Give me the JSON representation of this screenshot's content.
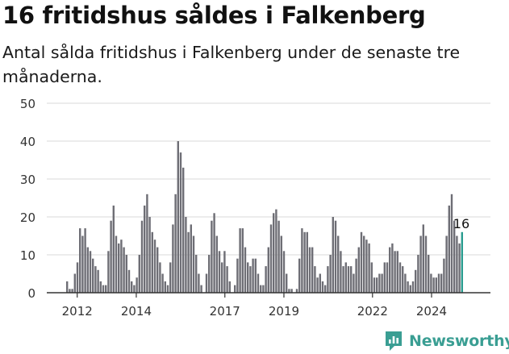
{
  "header": {
    "title": "16 fritidshus såldes i Falkenberg",
    "subtitle": "Antal sålda fritidshus i Falkenberg under de senaste tre månaderna."
  },
  "brand": {
    "name": "Newsworthy",
    "color": "#3a9e93",
    "icon": "newsworthy-logo-icon"
  },
  "colors": {
    "bar": "#6e6e75",
    "highlight": "#2a9c8f",
    "grid": "#d9d9d9",
    "axis": "#333333"
  },
  "chart_data": {
    "type": "bar",
    "title": "16 fritidshus såldes i Falkenberg",
    "subtitle": "Antal sålda fritidshus i Falkenberg under de senaste tre månaderna.",
    "xlabel": "",
    "ylabel": "",
    "ylim": [
      0,
      50
    ],
    "yticks": [
      0,
      10,
      20,
      30,
      40,
      50
    ],
    "xticks": [
      "2012",
      "2014",
      "2017",
      "2019",
      "2022",
      "2024"
    ],
    "grid": true,
    "legend": "none",
    "annotation": {
      "label": "16",
      "value": 16
    },
    "values": [
      3,
      1,
      1,
      5,
      8,
      17,
      15,
      17,
      12,
      11,
      9,
      7,
      6,
      3,
      2,
      2,
      11,
      19,
      23,
      15,
      13,
      14,
      12,
      10,
      6,
      3,
      2,
      4,
      10,
      19,
      23,
      26,
      20,
      16,
      14,
      12,
      8,
      5,
      3,
      2,
      8,
      18,
      26,
      40,
      37,
      33,
      20,
      16,
      18,
      15,
      10,
      5,
      2,
      0,
      5,
      10,
      19,
      21,
      15,
      11,
      8,
      11,
      7,
      3,
      0,
      2,
      9,
      17,
      17,
      12,
      8,
      7,
      9,
      9,
      5,
      2,
      2,
      7,
      12,
      18,
      21,
      22,
      19,
      15,
      11,
      5,
      1,
      1,
      0,
      1,
      9,
      17,
      16,
      16,
      12,
      12,
      7,
      4,
      5,
      3,
      2,
      7,
      10,
      20,
      19,
      15,
      11,
      7,
      8,
      7,
      7,
      5,
      9,
      12,
      16,
      15,
      14,
      13,
      8,
      4,
      4,
      5,
      5,
      8,
      8,
      12,
      13,
      11,
      11,
      8,
      7,
      5,
      3,
      2,
      3,
      6,
      10,
      15,
      18,
      15,
      10,
      5,
      4,
      4,
      5,
      5,
      9,
      15,
      23,
      26,
      19,
      15,
      13,
      16
    ],
    "series": [
      {
        "name": "",
        "values": [
          3,
          1,
          1,
          5,
          8,
          17,
          15,
          17,
          12,
          11,
          9,
          7,
          6,
          3,
          2,
          2,
          11,
          19,
          23,
          15,
          13,
          14,
          12,
          10,
          6,
          3,
          2,
          4,
          10,
          19,
          23,
          26,
          20,
          16,
          14,
          12,
          8,
          5,
          3,
          2,
          8,
          18,
          26,
          40,
          37,
          33,
          20,
          16,
          18,
          15,
          10,
          5,
          2,
          0,
          5,
          10,
          19,
          21,
          15,
          11,
          8,
          11,
          7,
          3,
          0,
          2,
          9,
          17,
          17,
          12,
          8,
          7,
          9,
          9,
          5,
          2,
          2,
          7,
          12,
          18,
          21,
          22,
          19,
          15,
          11,
          5,
          1,
          1,
          0,
          1,
          9,
          17,
          16,
          16,
          12,
          12,
          7,
          4,
          5,
          3,
          2,
          7,
          10,
          20,
          19,
          15,
          11,
          7,
          8,
          7,
          7,
          5,
          9,
          12,
          16,
          15,
          14,
          13,
          8,
          4,
          4,
          5,
          5,
          8,
          8,
          12,
          13,
          11,
          11,
          8,
          7,
          5,
          3,
          2,
          3,
          6,
          10,
          15,
          18,
          15,
          10,
          5,
          4,
          4,
          5,
          5,
          9,
          15,
          23,
          26,
          19,
          15,
          13,
          16
        ]
      }
    ]
  }
}
